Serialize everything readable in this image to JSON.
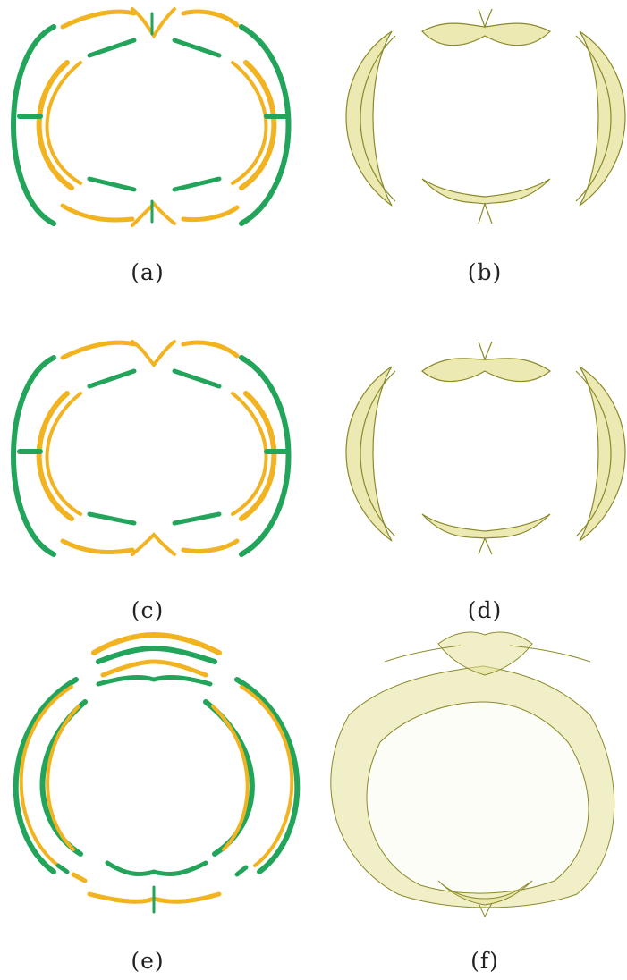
{
  "figure": {
    "panels": [
      {
        "id": "a",
        "caption": "(a)"
      },
      {
        "id": "b",
        "caption": "(b)"
      },
      {
        "id": "c",
        "caption": "(c)"
      },
      {
        "id": "d",
        "caption": "(d)"
      },
      {
        "id": "e",
        "caption": "(e)"
      },
      {
        "id": "f",
        "caption": "(f)"
      }
    ]
  },
  "colors": {
    "green": "#22a55a",
    "yellow": "#f2b320",
    "translucent_fill": "#e6e29a",
    "translucent_edge": "#8a8a2a"
  }
}
